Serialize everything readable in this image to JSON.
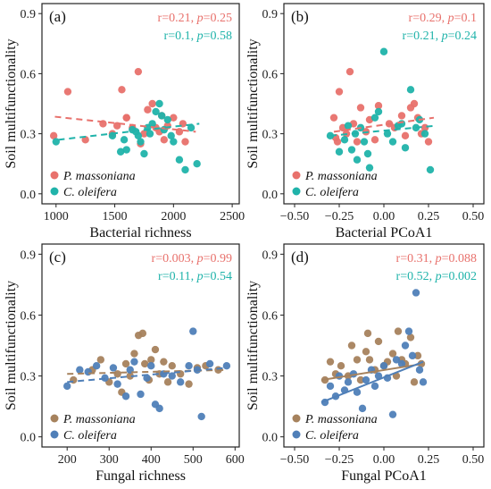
{
  "chart_data": [
    {
      "type": "scatter",
      "panel_label": "(a)",
      "xlabel": "Bacterial richness",
      "ylabel": "Soil multifunctionality",
      "xlim": [
        880,
        2560
      ],
      "ylim": [
        -0.05,
        0.95
      ],
      "xticks": [
        1000,
        1500,
        2000,
        2500
      ],
      "xtick_labels": [
        "1000",
        "1500",
        "2000",
        "2500"
      ],
      "yticks": [
        0.0,
        0.3,
        0.6,
        0.9
      ],
      "ytick_labels": [
        "0.0",
        "0.3",
        "0.6",
        "0.9"
      ],
      "stats": [
        {
          "r_label": "r=0.21, ",
          "p_label": "p",
          "p_value": "=0.25",
          "color": "#e8716c"
        },
        {
          "r_label": "r=0.1, ",
          "p_label": "p",
          "p_value": "=0.58",
          "color": "#20b3aa"
        }
      ],
      "series": [
        {
          "name": "P. massoniana",
          "color": "#e8716c",
          "line_style": "dashed",
          "fit": {
            "x": [
              990,
              2190
            ],
            "y": [
              0.385,
              0.31
            ]
          },
          "points": [
            [
              980,
              0.29
            ],
            [
              1100,
              0.51
            ],
            [
              1250,
              0.27
            ],
            [
              1400,
              0.35
            ],
            [
              1480,
              0.3
            ],
            [
              1520,
              0.34
            ],
            [
              1560,
              0.52
            ],
            [
              1600,
              0.38
            ],
            [
              1650,
              0.33
            ],
            [
              1700,
              0.61
            ],
            [
              1720,
              0.25
            ],
            [
              1780,
              0.42
            ],
            [
              1820,
              0.45
            ],
            [
              1850,
              0.33
            ],
            [
              1880,
              0.31
            ],
            [
              1900,
              0.39
            ],
            [
              1920,
              0.27
            ],
            [
              1950,
              0.34
            ],
            [
              2000,
              0.38
            ],
            [
              2050,
              0.31
            ],
            [
              2080,
              0.35
            ],
            [
              2100,
              0.26
            ],
            [
              1600,
              0.38
            ],
            [
              1750,
              0.3
            ]
          ]
        },
        {
          "name": "C. oleifera",
          "color": "#20b3aa",
          "line_style": "dashed",
          "fit": {
            "x": [
              1020,
              2220
            ],
            "y": [
              0.27,
              0.35
            ]
          },
          "points": [
            [
              1000,
              0.26
            ],
            [
              1480,
              0.29
            ],
            [
              1550,
              0.21
            ],
            [
              1580,
              0.27
            ],
            [
              1600,
              0.22
            ],
            [
              1650,
              0.32
            ],
            [
              1680,
              0.31
            ],
            [
              1700,
              0.29
            ],
            [
              1720,
              0.26
            ],
            [
              1750,
              0.2
            ],
            [
              1780,
              0.33
            ],
            [
              1800,
              0.3
            ],
            [
              1820,
              0.35
            ],
            [
              1850,
              0.41
            ],
            [
              1880,
              0.45
            ],
            [
              1900,
              0.39
            ],
            [
              1920,
              0.32
            ],
            [
              1950,
              0.37
            ],
            [
              1980,
              0.29
            ],
            [
              2000,
              0.26
            ],
            [
              2050,
              0.17
            ],
            [
              2100,
              0.12
            ],
            [
              2150,
              0.33
            ],
            [
              2200,
              0.15
            ]
          ]
        }
      ]
    },
    {
      "type": "scatter",
      "panel_label": "(b)",
      "xlabel": "Bacterial PCoA1",
      "ylabel": "Soil multifunctionality",
      "xlim": [
        -0.56,
        0.56
      ],
      "ylim": [
        -0.05,
        0.95
      ],
      "xticks": [
        -0.5,
        -0.25,
        0.0,
        0.25,
        0.5
      ],
      "xtick_labels": [
        "−0.50",
        "−0.25",
        "0.00",
        "0.25",
        "0.50"
      ],
      "yticks": [
        0.0,
        0.3,
        0.6,
        0.9
      ],
      "ytick_labels": [
        "0.0",
        "0.3",
        "0.6",
        "0.9"
      ],
      "stats": [
        {
          "r_label": "r=0.29, ",
          "p_label": "p",
          "p_value": "=0.1",
          "color": "#e8716c"
        },
        {
          "r_label": "r=0.21, ",
          "p_label": "p",
          "p_value": "=0.24",
          "color": "#20b3aa"
        }
      ],
      "series": [
        {
          "name": "P. massoniana",
          "color": "#e8716c",
          "line_style": "dashed",
          "fit": {
            "x": [
              -0.28,
              0.28
            ],
            "y": [
              0.31,
              0.38
            ]
          },
          "points": [
            [
              -0.28,
              0.38
            ],
            [
              -0.27,
              0.28
            ],
            [
              -0.25,
              0.51
            ],
            [
              -0.23,
              0.33
            ],
            [
              -0.21,
              0.3
            ],
            [
              -0.19,
              0.61
            ],
            [
              -0.17,
              0.35
            ],
            [
              -0.15,
              0.26
            ],
            [
              -0.13,
              0.43
            ],
            [
              -0.1,
              0.31
            ],
            [
              -0.08,
              0.37
            ],
            [
              -0.05,
              0.27
            ],
            [
              -0.03,
              0.44
            ],
            [
              0.03,
              0.35
            ],
            [
              0.06,
              0.33
            ],
            [
              0.1,
              0.39
            ],
            [
              0.12,
              0.29
            ],
            [
              0.15,
              0.43
            ],
            [
              0.17,
              0.45
            ],
            [
              0.19,
              0.38
            ],
            [
              0.21,
              0.3
            ],
            [
              0.23,
              0.33
            ],
            [
              0.25,
              0.26
            ],
            [
              -0.26,
              0.26
            ]
          ]
        },
        {
          "name": "C. oleifera",
          "color": "#20b3aa",
          "line_style": "dashed",
          "fit": {
            "x": [
              -0.3,
              0.29
            ],
            "y": [
              0.29,
              0.34
            ]
          },
          "points": [
            [
              -0.3,
              0.29
            ],
            [
              -0.25,
              0.21
            ],
            [
              -0.22,
              0.27
            ],
            [
              -0.2,
              0.34
            ],
            [
              -0.18,
              0.22
            ],
            [
              -0.16,
              0.3
            ],
            [
              -0.15,
              0.17
            ],
            [
              -0.13,
              0.33
            ],
            [
              -0.11,
              0.26
            ],
            [
              -0.09,
              0.2
            ],
            [
              -0.08,
              0.13
            ],
            [
              -0.05,
              0.38
            ],
            [
              -0.03,
              0.41
            ],
            [
              0.0,
              0.71
            ],
            [
              0.02,
              0.3
            ],
            [
              0.05,
              0.26
            ],
            [
              0.08,
              0.34
            ],
            [
              0.1,
              0.35
            ],
            [
              0.12,
              0.23
            ],
            [
              0.15,
              0.52
            ],
            [
              0.18,
              0.33
            ],
            [
              0.2,
              0.37
            ],
            [
              0.23,
              0.3
            ],
            [
              0.26,
              0.12
            ]
          ]
        }
      ]
    },
    {
      "type": "scatter",
      "panel_label": "(c)",
      "xlabel": "Fungal richness",
      "ylabel": "Soil multifunctionality",
      "xlim": [
        140,
        610
      ],
      "ylim": [
        -0.05,
        0.95
      ],
      "xticks": [
        200,
        300,
        400,
        500,
        600
      ],
      "xtick_labels": [
        "200",
        "300",
        "400",
        "500",
        "600"
      ],
      "yticks": [
        0.0,
        0.3,
        0.6,
        0.9
      ],
      "ytick_labels": [
        "0.0",
        "0.3",
        "0.6",
        "0.9"
      ],
      "stats": [
        {
          "r_label": "r=0.003, ",
          "p_label": "p",
          "p_value": "=0.99",
          "color": "#e8716c"
        },
        {
          "r_label": "r=0.11, ",
          "p_label": "p",
          "p_value": "=0.54",
          "color": "#20b3aa"
        }
      ],
      "series": [
        {
          "name": "P. massoniana",
          "color": "#a6825d",
          "line_style": "dashed",
          "fit": {
            "x": [
              200,
              580
            ],
            "y": [
              0.31,
              0.33
            ]
          },
          "points": [
            [
              215,
              0.28
            ],
            [
              260,
              0.33
            ],
            [
              280,
              0.38
            ],
            [
              300,
              0.27
            ],
            [
              320,
              0.31
            ],
            [
              330,
              0.22
            ],
            [
              340,
              0.36
            ],
            [
              350,
              0.3
            ],
            [
              360,
              0.41
            ],
            [
              370,
              0.5
            ],
            [
              380,
              0.51
            ],
            [
              385,
              0.36
            ],
            [
              395,
              0.28
            ],
            [
              400,
              0.38
            ],
            [
              410,
              0.43
            ],
            [
              420,
              0.31
            ],
            [
              430,
              0.37
            ],
            [
              440,
              0.27
            ],
            [
              450,
              0.35
            ],
            [
              470,
              0.31
            ],
            [
              490,
              0.26
            ],
            [
              510,
              0.34
            ],
            [
              530,
              0.35
            ],
            [
              560,
              0.33
            ]
          ]
        },
        {
          "name": "C. oleifera",
          "color": "#4f7fb8",
          "line_style": "dashed",
          "fit": {
            "x": [
              200,
              580
            ],
            "y": [
              0.27,
              0.34
            ]
          },
          "points": [
            [
              200,
              0.25
            ],
            [
              230,
              0.33
            ],
            [
              250,
              0.32
            ],
            [
              270,
              0.35
            ],
            [
              290,
              0.29
            ],
            [
              310,
              0.34
            ],
            [
              320,
              0.26
            ],
            [
              340,
              0.2
            ],
            [
              350,
              0.33
            ],
            [
              360,
              0.37
            ],
            [
              375,
              0.21
            ],
            [
              390,
              0.29
            ],
            [
              400,
              0.35
            ],
            [
              410,
              0.16
            ],
            [
              420,
              0.14
            ],
            [
              430,
              0.31
            ],
            [
              450,
              0.3
            ],
            [
              470,
              0.27
            ],
            [
              490,
              0.35
            ],
            [
              500,
              0.52
            ],
            [
              510,
              0.33
            ],
            [
              520,
              0.1
            ],
            [
              540,
              0.36
            ],
            [
              580,
              0.35
            ]
          ]
        }
      ]
    },
    {
      "type": "scatter",
      "panel_label": "(d)",
      "xlabel": "Fungal PCoA1",
      "ylabel": "Soil multifunctionality",
      "xlim": [
        -0.56,
        0.56
      ],
      "ylim": [
        -0.05,
        0.95
      ],
      "xticks": [
        -0.5,
        -0.25,
        0.0,
        0.25,
        0.5
      ],
      "xtick_labels": [
        "−0.50",
        "−0.25",
        "0.00",
        "0.25",
        "0.50"
      ],
      "yticks": [
        0.0,
        0.3,
        0.6,
        0.9
      ],
      "ytick_labels": [
        "0.0",
        "0.3",
        "0.6",
        "0.9"
      ],
      "stats": [
        {
          "r_label": "r=0.31, ",
          "p_label": "p",
          "p_value": "=0.088",
          "color": "#e8716c"
        },
        {
          "r_label": "r=0.52, ",
          "p_label": "p",
          "p_value": "=0.002",
          "color": "#20b3aa"
        }
      ],
      "series": [
        {
          "name": "P. massoniana",
          "color": "#a6825d",
          "line_style": "solid",
          "fit": {
            "x": [
              -0.35,
              0.22
            ],
            "y": [
              0.28,
              0.36
            ]
          },
          "points": [
            [
              -0.33,
              0.28
            ],
            [
              -0.3,
              0.37
            ],
            [
              -0.27,
              0.31
            ],
            [
              -0.24,
              0.35
            ],
            [
              -0.2,
              0.3
            ],
            [
              -0.18,
              0.45
            ],
            [
              -0.15,
              0.38
            ],
            [
              -0.13,
              0.28
            ],
            [
              -0.1,
              0.42
            ],
            [
              -0.08,
              0.38
            ],
            [
              -0.05,
              0.33
            ],
            [
              -0.03,
              0.47
            ],
            [
              0.0,
              0.35
            ],
            [
              0.02,
              0.37
            ],
            [
              0.05,
              0.41
            ],
            [
              0.07,
              0.3
            ],
            [
              0.1,
              0.38
            ],
            [
              0.12,
              0.36
            ],
            [
              0.15,
              0.49
            ],
            [
              0.17,
              0.27
            ],
            [
              0.19,
              0.4
            ],
            [
              0.21,
              0.36
            ],
            [
              -0.09,
              0.51
            ],
            [
              0.08,
              0.52
            ]
          ]
        },
        {
          "name": "C. oleifera",
          "color": "#4f7fb8",
          "line_style": "solid",
          "fit": {
            "x": [
              -0.35,
              0.22
            ],
            "y": [
              0.17,
              0.37
            ]
          },
          "points": [
            [
              -0.33,
              0.17
            ],
            [
              -0.3,
              0.25
            ],
            [
              -0.27,
              0.2
            ],
            [
              -0.25,
              0.3
            ],
            [
              -0.22,
              0.23
            ],
            [
              -0.2,
              0.27
            ],
            [
              -0.17,
              0.31
            ],
            [
              -0.15,
              0.22
            ],
            [
              -0.12,
              0.14
            ],
            [
              -0.1,
              0.28
            ],
            [
              -0.07,
              0.33
            ],
            [
              -0.05,
              0.25
            ],
            [
              -0.03,
              0.3
            ],
            [
              0.0,
              0.35
            ],
            [
              0.02,
              0.29
            ],
            [
              0.05,
              0.11
            ],
            [
              0.07,
              0.38
            ],
            [
              0.1,
              0.36
            ],
            [
              0.12,
              0.45
            ],
            [
              0.14,
              0.52
            ],
            [
              0.16,
              0.4
            ],
            [
              0.18,
              0.71
            ],
            [
              0.2,
              0.33
            ],
            [
              0.22,
              0.27
            ]
          ]
        }
      ]
    }
  ]
}
